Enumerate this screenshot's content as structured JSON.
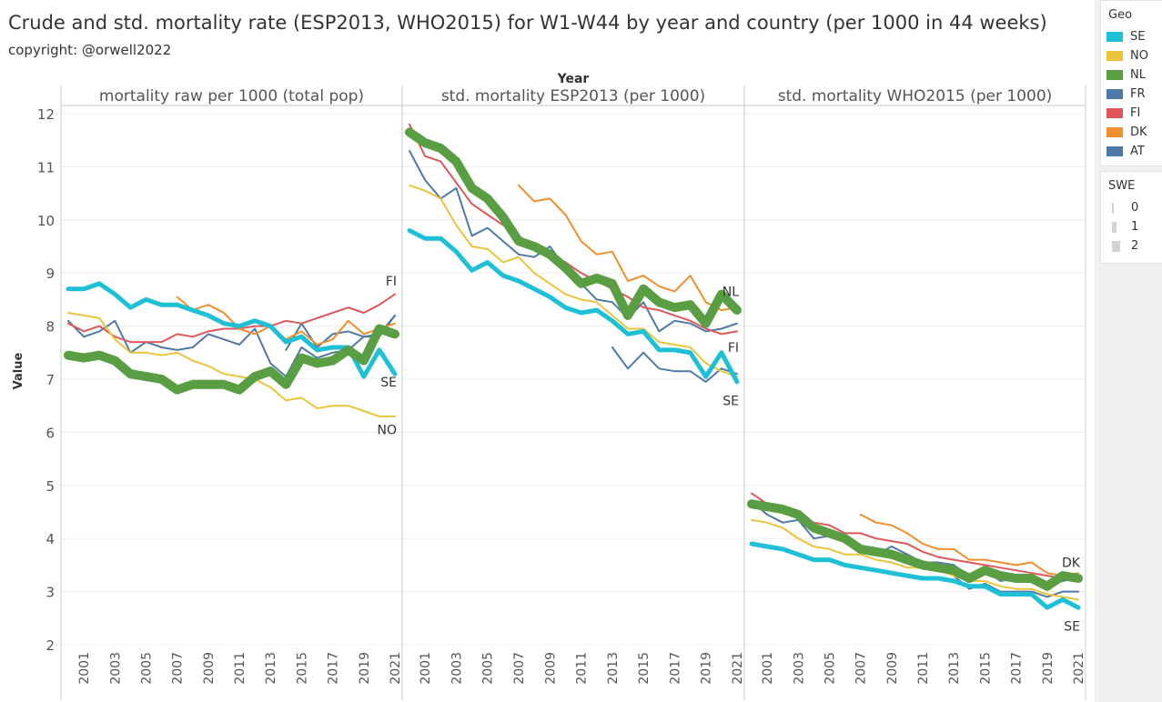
{
  "title": "Crude and std. mortality rate (ESP2013, WHO2015) for W1-W44 by year and country (per 1000 in 44 weeks)",
  "subtitle": "copyright: @orwell2022",
  "legend": {
    "geo_title": "Geo",
    "geo_items": [
      {
        "label": "SE",
        "color": "#1ec0d6"
      },
      {
        "label": "NO",
        "color": "#eac43a"
      },
      {
        "label": "NL",
        "color": "#5a9e43"
      },
      {
        "label": "FR",
        "color": "#4e79a7"
      },
      {
        "label": "FI",
        "color": "#e15759"
      },
      {
        "label": "DK",
        "color": "#f28e2b"
      },
      {
        "label": "AT",
        "color": "#4e79a7"
      }
    ],
    "swe_title": "SWE",
    "swe_items": [
      "0",
      "1",
      "2"
    ]
  },
  "chart_data": {
    "type": "line",
    "column_header": "Year",
    "ylabel": "Value",
    "ylim": [
      2,
      12.2
    ],
    "y_ticks": [
      "2",
      "3",
      "4",
      "5",
      "6",
      "7",
      "8",
      "9",
      "10",
      "11",
      "12"
    ],
    "x_tick_labels": [
      "2001",
      "2003",
      "2005",
      "2007",
      "2009",
      "2011",
      "2013",
      "2015",
      "2017",
      "2019",
      "2021"
    ],
    "x_range": [
      2000,
      2021
    ],
    "panels": [
      {
        "title": "mortality raw per 1000 (total pop)",
        "labels": [
          {
            "text": "FI",
            "x": 2021,
            "y": 8.85
          },
          {
            "text": "SE",
            "x": 2021,
            "y": 6.95
          },
          {
            "text": "NO",
            "x": 2021,
            "y": 6.05
          }
        ],
        "series": [
          {
            "geo": "AT",
            "start": 2000,
            "values": [
              8.1,
              7.8,
              7.9,
              8.1,
              7.5,
              7.7,
              7.6,
              7.55,
              7.6,
              7.85,
              7.75,
              7.65,
              7.95,
              7.3,
              7.05,
              7.6,
              7.4,
              7.5,
              7.55,
              7.8,
              7.8,
              8.2
            ]
          },
          {
            "geo": "FR",
            "start": 2000,
            "values": [
              null,
              null,
              null,
              null,
              null,
              null,
              null,
              null,
              null,
              null,
              null,
              null,
              null,
              null,
              7.55,
              8.05,
              7.6,
              7.85,
              7.9,
              7.8,
              7.85,
              8.2
            ]
          },
          {
            "geo": "FI",
            "start": 2000,
            "values": [
              8.05,
              7.9,
              8.0,
              7.8,
              7.7,
              7.7,
              7.7,
              7.85,
              7.8,
              7.9,
              7.95,
              7.95,
              8.0,
              8.0,
              8.1,
              8.05,
              8.15,
              8.25,
              8.35,
              8.25,
              8.4,
              8.6
            ]
          },
          {
            "geo": "DK",
            "start": 2000,
            "values": [
              null,
              null,
              null,
              null,
              null,
              null,
              null,
              8.55,
              8.3,
              8.4,
              8.25,
              7.95,
              7.85,
              8.0,
              7.75,
              7.9,
              7.65,
              7.75,
              8.1,
              7.85,
              7.95,
              8.05
            ]
          },
          {
            "geo": "NO",
            "start": 2000,
            "values": [
              8.25,
              8.2,
              8.15,
              7.75,
              7.5,
              7.5,
              7.45,
              7.5,
              7.35,
              7.25,
              7.1,
              7.05,
              7.0,
              6.85,
              6.6,
              6.65,
              6.45,
              6.5,
              6.5,
              6.4,
              6.3,
              6.3
            ]
          },
          {
            "geo": "SE",
            "start": 2000,
            "values": [
              8.7,
              8.7,
              8.8,
              8.6,
              8.35,
              8.5,
              8.4,
              8.4,
              8.3,
              8.2,
              8.05,
              8.0,
              8.1,
              8.0,
              7.7,
              7.8,
              7.55,
              7.6,
              7.6,
              7.05,
              7.55,
              7.1
            ]
          },
          {
            "geo": "NL",
            "start": 2000,
            "values": [
              7.45,
              7.4,
              7.45,
              7.35,
              7.1,
              7.05,
              7.0,
              6.8,
              6.9,
              6.9,
              6.9,
              6.8,
              7.05,
              7.15,
              6.9,
              7.4,
              7.3,
              7.35,
              7.55,
              7.35,
              7.95,
              7.85
            ]
          }
        ]
      },
      {
        "title": "std. mortality ESP2013  (per 1000)",
        "labels": [
          {
            "text": "NL",
            "x": 2021,
            "y": 8.65
          },
          {
            "text": "FI",
            "x": 2021,
            "y": 7.6
          },
          {
            "text": "SE",
            "x": 2021,
            "y": 6.6
          }
        ],
        "series": [
          {
            "geo": "AT",
            "start": 2000,
            "values": [
              11.3,
              10.75,
              10.4,
              10.6,
              9.7,
              9.85,
              9.6,
              9.35,
              9.3,
              9.5,
              9.1,
              8.8,
              8.5,
              8.45,
              8.15,
              8.45,
              7.9,
              8.1,
              8.05,
              7.9,
              7.95,
              8.05
            ]
          },
          {
            "geo": "FR",
            "start": 2000,
            "values": [
              null,
              null,
              null,
              null,
              null,
              null,
              null,
              null,
              null,
              null,
              null,
              null,
              null,
              7.6,
              7.2,
              7.5,
              7.2,
              7.15,
              7.15,
              6.95,
              7.2,
              7.1
            ]
          },
          {
            "geo": "FI",
            "start": 2000,
            "values": [
              11.8,
              11.2,
              11.1,
              10.7,
              10.3,
              10.1,
              9.9,
              9.7,
              9.5,
              9.35,
              9.2,
              9.0,
              8.85,
              8.7,
              8.55,
              8.35,
              8.3,
              8.2,
              8.1,
              7.95,
              7.85,
              7.9
            ]
          },
          {
            "geo": "DK",
            "start": 2000,
            "values": [
              null,
              null,
              null,
              null,
              null,
              null,
              null,
              10.65,
              10.35,
              10.4,
              10.1,
              9.6,
              9.35,
              9.4,
              8.85,
              8.95,
              8.75,
              8.65,
              8.95,
              8.45,
              8.3,
              8.35
            ]
          },
          {
            "geo": "NO",
            "start": 2000,
            "values": [
              10.65,
              10.55,
              10.4,
              9.9,
              9.5,
              9.45,
              9.2,
              9.3,
              9.0,
              8.8,
              8.6,
              8.5,
              8.45,
              8.2,
              7.95,
              7.95,
              7.7,
              7.65,
              7.6,
              7.3,
              7.15,
              7.05
            ]
          },
          {
            "geo": "SE",
            "start": 2000,
            "values": [
              9.8,
              9.65,
              9.65,
              9.4,
              9.05,
              9.2,
              8.95,
              8.85,
              8.7,
              8.55,
              8.35,
              8.25,
              8.3,
              8.1,
              7.85,
              7.9,
              7.55,
              7.55,
              7.5,
              7.05,
              7.5,
              6.95
            ]
          },
          {
            "geo": "NL",
            "start": 2000,
            "values": [
              11.65,
              11.45,
              11.35,
              11.1,
              10.6,
              10.4,
              10.05,
              9.6,
              9.5,
              9.35,
              9.1,
              8.8,
              8.9,
              8.8,
              8.2,
              8.7,
              8.45,
              8.35,
              8.4,
              8.05,
              8.6,
              8.3
            ]
          }
        ]
      },
      {
        "title": "std. mortality WHO2015 (per 1000)",
        "labels": [
          {
            "text": "DK",
            "x": 2021,
            "y": 3.55
          },
          {
            "text": "SE",
            "x": 2021,
            "y": 2.35
          }
        ],
        "series": [
          {
            "geo": "AT",
            "start": 2000,
            "values": [
              4.7,
              4.45,
              4.3,
              4.35,
              4.0,
              4.05,
              3.95,
              3.75,
              3.7,
              3.85,
              3.7,
              3.55,
              3.55,
              3.5,
              3.3,
              3.4,
              3.2,
              3.25,
              3.25,
              3.1,
              3.2,
              3.25
            ]
          },
          {
            "geo": "FR",
            "start": 2000,
            "values": [
              null,
              null,
              null,
              null,
              null,
              null,
              null,
              null,
              null,
              null,
              null,
              null,
              null,
              3.3,
              3.05,
              3.15,
              3.0,
              3.0,
              3.0,
              2.9,
              3.0,
              3.0
            ]
          },
          {
            "geo": "FI",
            "start": 2000,
            "values": [
              4.85,
              4.65,
              4.55,
              4.4,
              4.3,
              4.25,
              4.1,
              4.1,
              4.0,
              3.95,
              3.9,
              3.75,
              3.65,
              3.6,
              3.55,
              3.5,
              3.45,
              3.4,
              3.35,
              3.3,
              3.25,
              3.25
            ]
          },
          {
            "geo": "DK",
            "start": 2000,
            "values": [
              null,
              null,
              null,
              null,
              null,
              null,
              null,
              4.45,
              4.3,
              4.25,
              4.1,
              3.9,
              3.8,
              3.8,
              3.6,
              3.6,
              3.55,
              3.5,
              3.55,
              3.35,
              3.3,
              3.35
            ]
          },
          {
            "geo": "NO",
            "start": 2000,
            "values": [
              4.35,
              4.3,
              4.2,
              4.0,
              3.85,
              3.8,
              3.7,
              3.7,
              3.6,
              3.55,
              3.45,
              3.45,
              3.4,
              3.3,
              3.2,
              3.2,
              3.1,
              3.05,
              3.05,
              2.95,
              2.9,
              2.85
            ]
          },
          {
            "geo": "SE",
            "start": 2000,
            "values": [
              3.9,
              3.85,
              3.8,
              3.7,
              3.6,
              3.6,
              3.5,
              3.45,
              3.4,
              3.35,
              3.3,
              3.25,
              3.25,
              3.2,
              3.1,
              3.1,
              2.95,
              2.95,
              2.95,
              2.7,
              2.85,
              2.7
            ]
          },
          {
            "geo": "NL",
            "start": 2000,
            "values": [
              4.65,
              4.6,
              4.55,
              4.45,
              4.2,
              4.1,
              4.0,
              3.8,
              3.75,
              3.7,
              3.6,
              3.5,
              3.45,
              3.4,
              3.25,
              3.4,
              3.3,
              3.25,
              3.25,
              3.1,
              3.3,
              3.25
            ]
          }
        ]
      }
    ]
  }
}
